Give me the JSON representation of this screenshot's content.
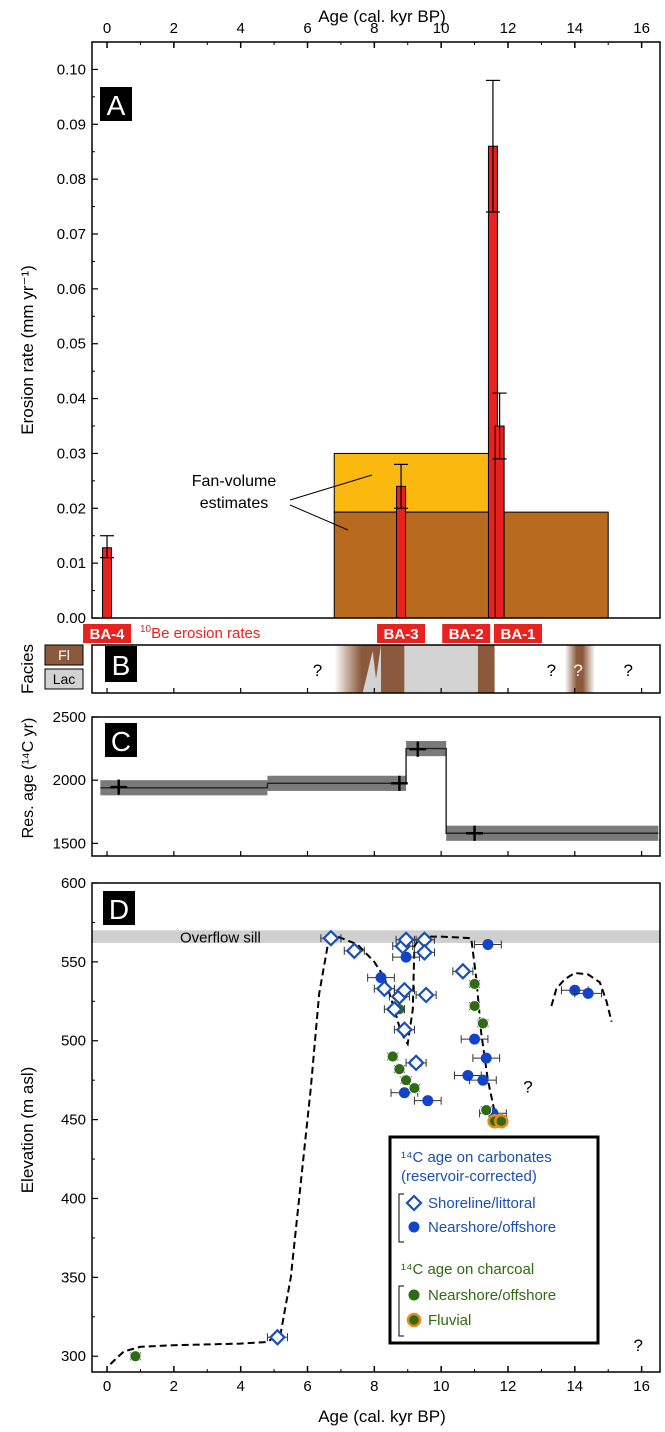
{
  "figure": {
    "top_axis_label": "Age (cal. kyr BP)",
    "bottom_axis_label": "Age (cal. kyr BP)",
    "x_ticks": [
      "0",
      "2",
      "4",
      "6",
      "8",
      "10",
      "12",
      "14",
      "16"
    ]
  },
  "colors": {
    "erosion_bar": "#e8231f",
    "fan_upper": "#fbb80f",
    "fan_lower": "#b86a1f",
    "fluvial_facies": "#8b5a3c",
    "lacustrine_facies": "#d2d2d2",
    "residual_band": "#7a7a7a",
    "shoreline": "#1a4fb5",
    "offshore_carbonate": "#1144c8",
    "charcoal": "#2e6b12",
    "fluvial_ring": "#e8891a",
    "sill": "#cfcfcf",
    "sample_label_text": "#e8231f"
  },
  "chart_data": [
    {
      "id": "A",
      "panel_label": "A",
      "type": "bar",
      "ylabel": "Erosion rate (mm yr⁻¹)",
      "ylim": [
        0,
        0.105
      ],
      "y_ticks": [
        "0.00",
        "0.01",
        "0.02",
        "0.03",
        "0.04",
        "0.05",
        "0.06",
        "0.07",
        "0.08",
        "0.09",
        "0.10"
      ],
      "fan_volume_estimates": {
        "label_line1": "Fan-volume",
        "label_line2": "estimates",
        "boxes": [
          {
            "x_start": 6.8,
            "x_end": 11.5,
            "y_bottom": 0.0193,
            "y_top": 0.03,
            "color": "fan_upper"
          },
          {
            "x_start": 6.8,
            "x_end": 11.5,
            "y_bottom": 0.0,
            "y_top": 0.0193,
            "color": "fan_lower"
          },
          {
            "x_start": 11.5,
            "x_end": 15.0,
            "y_bottom": 0.0,
            "y_top": 0.0193,
            "color": "fan_lower"
          }
        ]
      },
      "erosion_bars": [
        {
          "sample": "BA-4",
          "age": 0.0,
          "value": 0.0128,
          "err_low": 0.011,
          "err_high": 0.015
        },
        {
          "sample": "BA-3",
          "age": 8.8,
          "value": 0.024,
          "err_low": 0.02,
          "err_high": 0.028
        },
        {
          "sample": "BA-2",
          "age": 11.55,
          "value": 0.086,
          "err_low": 0.074,
          "err_high": 0.098
        },
        {
          "sample": "BA-1",
          "age": 11.75,
          "value": 0.035,
          "err_low": 0.029,
          "err_high": 0.041
        }
      ],
      "sample_labels": [
        {
          "text": "BA-4",
          "age": 0.0
        },
        {
          "text": "BA-3",
          "age": 8.8
        },
        {
          "text": "BA-2",
          "age": 10.75
        },
        {
          "text": "BA-1",
          "age": 12.3
        }
      ],
      "erosion_caption_pre": "10",
      "erosion_caption": "Be erosion rates"
    },
    {
      "id": "B",
      "panel_label": "B",
      "type": "table",
      "ylabel": "Facies",
      "legend": [
        {
          "label": "Fl",
          "color": "fluvial_facies"
        },
        {
          "label": "Lac",
          "color": "lacustrine_facies"
        }
      ],
      "intervals": [
        {
          "facies": "Fl",
          "start": 6.8,
          "end": 7.6,
          "fade": "left"
        },
        {
          "facies": "Fl",
          "start": 7.6,
          "end": 8.2
        },
        {
          "facies": "Fl",
          "start": 8.2,
          "end": 8.9
        },
        {
          "facies": "Lac",
          "start": 8.9,
          "end": 11.1
        },
        {
          "facies": "Fl",
          "start": 11.1,
          "end": 11.6
        },
        {
          "facies": "Fl",
          "start": 13.7,
          "end": 14.6,
          "fade": "both"
        }
      ],
      "question_marks": [
        {
          "text": "?",
          "age": 6.3
        },
        {
          "text": "?",
          "age": 13.3
        },
        {
          "text": "?",
          "age": 14.1
        },
        {
          "text": "?",
          "age": 15.6
        }
      ]
    },
    {
      "id": "C",
      "panel_label": "C",
      "type": "line",
      "ylabel": "Res. age (¹⁴C yr)",
      "ylim": [
        1400,
        2500
      ],
      "y_ticks": [
        "1500",
        "2000",
        "2500"
      ],
      "step_line": [
        {
          "x_start": -0.2,
          "x_end": 4.8,
          "y": 1940,
          "band": 60
        },
        {
          "x_start": 4.8,
          "x_end": 8.95,
          "y": 1975,
          "band": 60
        },
        {
          "x_start": 8.95,
          "x_end": 10.15,
          "y": 2250,
          "band": 60
        },
        {
          "x_start": 10.15,
          "x_end": 16.5,
          "y": 1580,
          "band": 60
        }
      ],
      "points": [
        {
          "x": 0.35,
          "y": 1945,
          "xerr": 0.25,
          "yerr": 60
        },
        {
          "x": 8.75,
          "y": 1975,
          "xerr": 0.25,
          "yerr": 60
        },
        {
          "x": 9.3,
          "y": 2245,
          "xerr": 0.25,
          "yerr": 60
        },
        {
          "x": 11.0,
          "y": 1580,
          "xerr": 0.25,
          "yerr": 60
        }
      ]
    },
    {
      "id": "D",
      "panel_label": "D",
      "type": "scatter",
      "ylabel": "Elevation (m asl)",
      "ylim": [
        290,
        600
      ],
      "y_ticks": [
        "300",
        "350",
        "400",
        "450",
        "500",
        "550",
        "600"
      ],
      "sill": {
        "label": "Overflow sill",
        "y_low": 562,
        "y_high": 570
      },
      "shoreline": [
        {
          "x": 6.7,
          "y": 565
        },
        {
          "x": 7.4,
          "y": 557
        },
        {
          "x": 8.3,
          "y": 533
        },
        {
          "x": 8.75,
          "y": 528
        },
        {
          "x": 8.9,
          "y": 532
        },
        {
          "x": 8.6,
          "y": 520
        },
        {
          "x": 8.9,
          "y": 507
        },
        {
          "x": 8.85,
          "y": 560
        },
        {
          "x": 8.95,
          "y": 564
        },
        {
          "x": 9.5,
          "y": 564
        },
        {
          "x": 9.5,
          "y": 556
        },
        {
          "x": 9.55,
          "y": 529
        },
        {
          "x": 9.25,
          "y": 486
        },
        {
          "x": 10.65,
          "y": 544
        },
        {
          "x": 5.1,
          "y": 312
        }
      ],
      "offshore_carbonate": [
        {
          "x": 8.2,
          "y": 540
        },
        {
          "x": 8.95,
          "y": 553
        },
        {
          "x": 8.9,
          "y": 467
        },
        {
          "x": 9.6,
          "y": 462
        },
        {
          "x": 11.4,
          "y": 561
        },
        {
          "x": 11.0,
          "y": 501
        },
        {
          "x": 11.35,
          "y": 489
        },
        {
          "x": 10.8,
          "y": 478
        },
        {
          "x": 11.25,
          "y": 475
        },
        {
          "x": 11.55,
          "y": 454
        },
        {
          "x": 14.0,
          "y": 532
        },
        {
          "x": 14.4,
          "y": 530
        }
      ],
      "charcoal": [
        {
          "x": 0.85,
          "y": 300
        },
        {
          "x": 8.55,
          "y": 490
        },
        {
          "x": 8.75,
          "y": 482
        },
        {
          "x": 8.95,
          "y": 475
        },
        {
          "x": 9.2,
          "y": 470
        },
        {
          "x": 9.25,
          "y": 486
        },
        {
          "x": 8.75,
          "y": 520
        },
        {
          "x": 11.0,
          "y": 536
        },
        {
          "x": 11.0,
          "y": 522
        },
        {
          "x": 11.25,
          "y": 511
        },
        {
          "x": 11.35,
          "y": 456
        },
        {
          "x": 11.8,
          "y": 450
        }
      ],
      "fluvial": [
        {
          "x": 11.6,
          "y": 449
        },
        {
          "x": 11.8,
          "y": 449
        }
      ],
      "dashed_curve": [
        [
          0.1,
          295
        ],
        [
          0.5,
          303
        ],
        [
          1.0,
          306
        ],
        [
          2.0,
          307
        ],
        [
          3.0,
          307.5
        ],
        [
          4.0,
          308
        ],
        [
          4.8,
          309
        ],
        [
          5.2,
          315
        ],
        [
          5.5,
          350
        ],
        [
          5.8,
          410
        ],
        [
          6.1,
          470
        ],
        [
          6.35,
          530
        ],
        [
          6.6,
          560
        ],
        [
          6.9,
          566
        ],
        [
          7.5,
          561
        ],
        [
          8.0,
          550
        ],
        [
          8.3,
          540
        ],
        [
          8.6,
          520
        ],
        [
          8.8,
          505
        ],
        [
          9.0,
          498
        ],
        [
          9.15,
          520
        ],
        [
          9.2,
          560
        ],
        [
          9.4,
          566
        ],
        [
          10.0,
          566
        ],
        [
          10.9,
          565
        ],
        [
          11.05,
          540
        ],
        [
          11.2,
          505
        ],
        [
          11.4,
          475
        ],
        [
          11.6,
          455
        ],
        [
          11.75,
          450
        ]
      ],
      "dashed_dome": [
        [
          13.3,
          522
        ],
        [
          13.45,
          533
        ],
        [
          13.7,
          539
        ],
        [
          14.0,
          543
        ],
        [
          14.4,
          542
        ],
        [
          14.75,
          537
        ],
        [
          14.95,
          525
        ],
        [
          15.1,
          512
        ]
      ],
      "question_marks": [
        {
          "text": "?",
          "x": 12.6,
          "y": 471
        },
        {
          "text": "?",
          "x": 15.9,
          "y": 307
        }
      ],
      "legend": {
        "title_carbonate_line1": "¹⁴C age on carbonates",
        "title_carbonate_line2": "(reservoir-corrected)",
        "shoreline_label": "Shoreline/littoral",
        "nearshore_carbonate_label": "Nearshore/offshore",
        "title_charcoal": "¹⁴C age on charcoal",
        "nearshore_charcoal_label": "Nearshore/offshore",
        "fluvial_label": "Fluvial"
      }
    }
  ]
}
